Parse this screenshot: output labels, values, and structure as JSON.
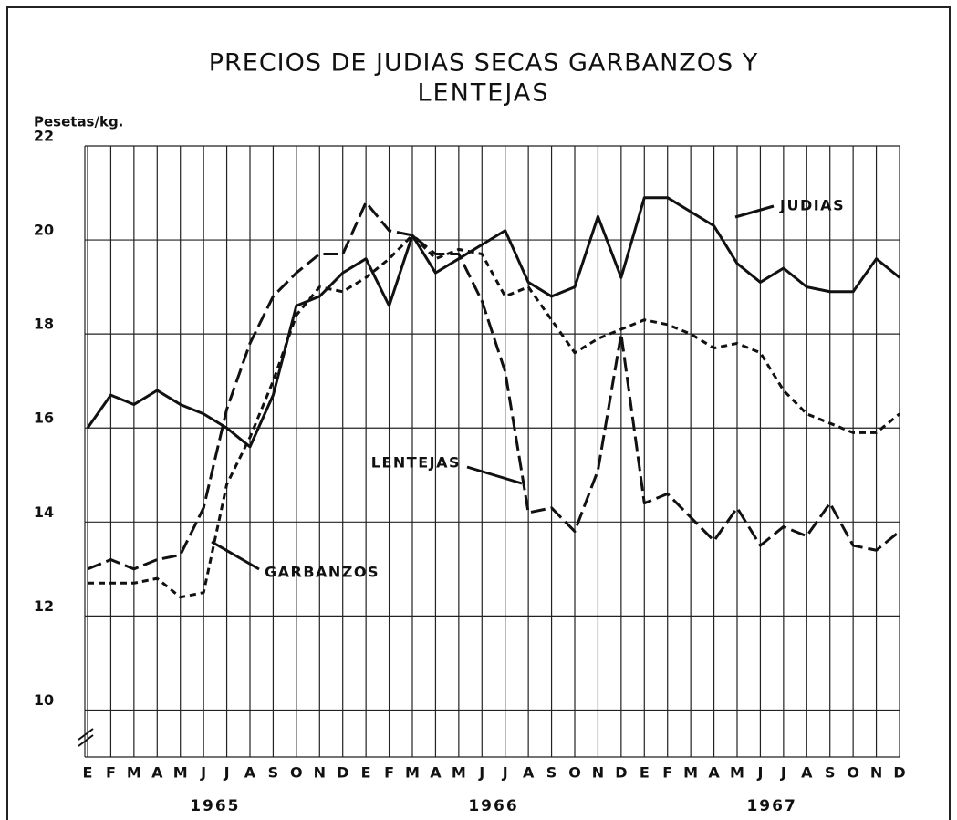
{
  "chart_data": {
    "type": "line",
    "title": [
      "PRECIOS DE JUDIAS SECAS  GARBANZOS Y",
      "LENTEJAS"
    ],
    "y_label": "Pesetas/kg.",
    "categories": [
      "E",
      "F",
      "M",
      "A",
      "M",
      "J",
      "J",
      "A",
      "S",
      "O",
      "N",
      "D",
      "E",
      "F",
      "M",
      "A",
      "M",
      "J",
      "J",
      "A",
      "S",
      "O",
      "N",
      "D",
      "E",
      "F",
      "M",
      "A",
      "M",
      "J",
      "J",
      "A",
      "S",
      "O",
      "N",
      "D"
    ],
    "x_groups": [
      "1965",
      "1966",
      "1967"
    ],
    "ylim": [
      9,
      22
    ],
    "yticks": [
      10,
      12,
      14,
      16,
      18,
      20,
      22
    ],
    "grid": true,
    "series": [
      {
        "name": "JUDIAS",
        "color": "#111111",
        "values": [
          16.0,
          16.7,
          16.5,
          16.8,
          16.5,
          16.3,
          16.0,
          15.6,
          16.7,
          18.6,
          18.8,
          19.3,
          19.6,
          18.6,
          20.1,
          19.3,
          19.6,
          19.9,
          20.2,
          19.1,
          18.8,
          19.0,
          20.5,
          19.2,
          20.9,
          20.9,
          20.6,
          20.3,
          19.5,
          19.1,
          19.4,
          19.0,
          18.9,
          18.9,
          19.6,
          19.2
        ]
      },
      {
        "name": "LENTEJAS",
        "color": "#111111",
        "values": [
          13.0,
          13.2,
          13.0,
          13.2,
          13.3,
          14.3,
          16.4,
          17.8,
          18.8,
          19.3,
          19.7,
          19.7,
          20.8,
          20.2,
          20.1,
          19.7,
          19.7,
          18.7,
          17.2,
          14.2,
          14.3,
          13.8,
          15.1,
          18.0,
          14.4,
          14.6,
          14.1,
          13.6,
          14.3,
          13.5,
          13.9,
          13.7,
          14.4,
          13.5,
          13.4,
          13.8
        ]
      },
      {
        "name": "GARBANZOS",
        "color": "#111111",
        "values": [
          12.7,
          12.7,
          12.7,
          12.8,
          12.4,
          12.5,
          14.8,
          15.8,
          17.0,
          18.4,
          19.0,
          18.9,
          19.2,
          19.6,
          20.1,
          19.6,
          19.8,
          19.7,
          18.8,
          19.0,
          18.3,
          17.6,
          17.9,
          18.1,
          18.3,
          18.2,
          18.0,
          17.7,
          17.8,
          17.6,
          16.8,
          16.3,
          16.1,
          15.9,
          15.9,
          16.3
        ]
      }
    ]
  }
}
